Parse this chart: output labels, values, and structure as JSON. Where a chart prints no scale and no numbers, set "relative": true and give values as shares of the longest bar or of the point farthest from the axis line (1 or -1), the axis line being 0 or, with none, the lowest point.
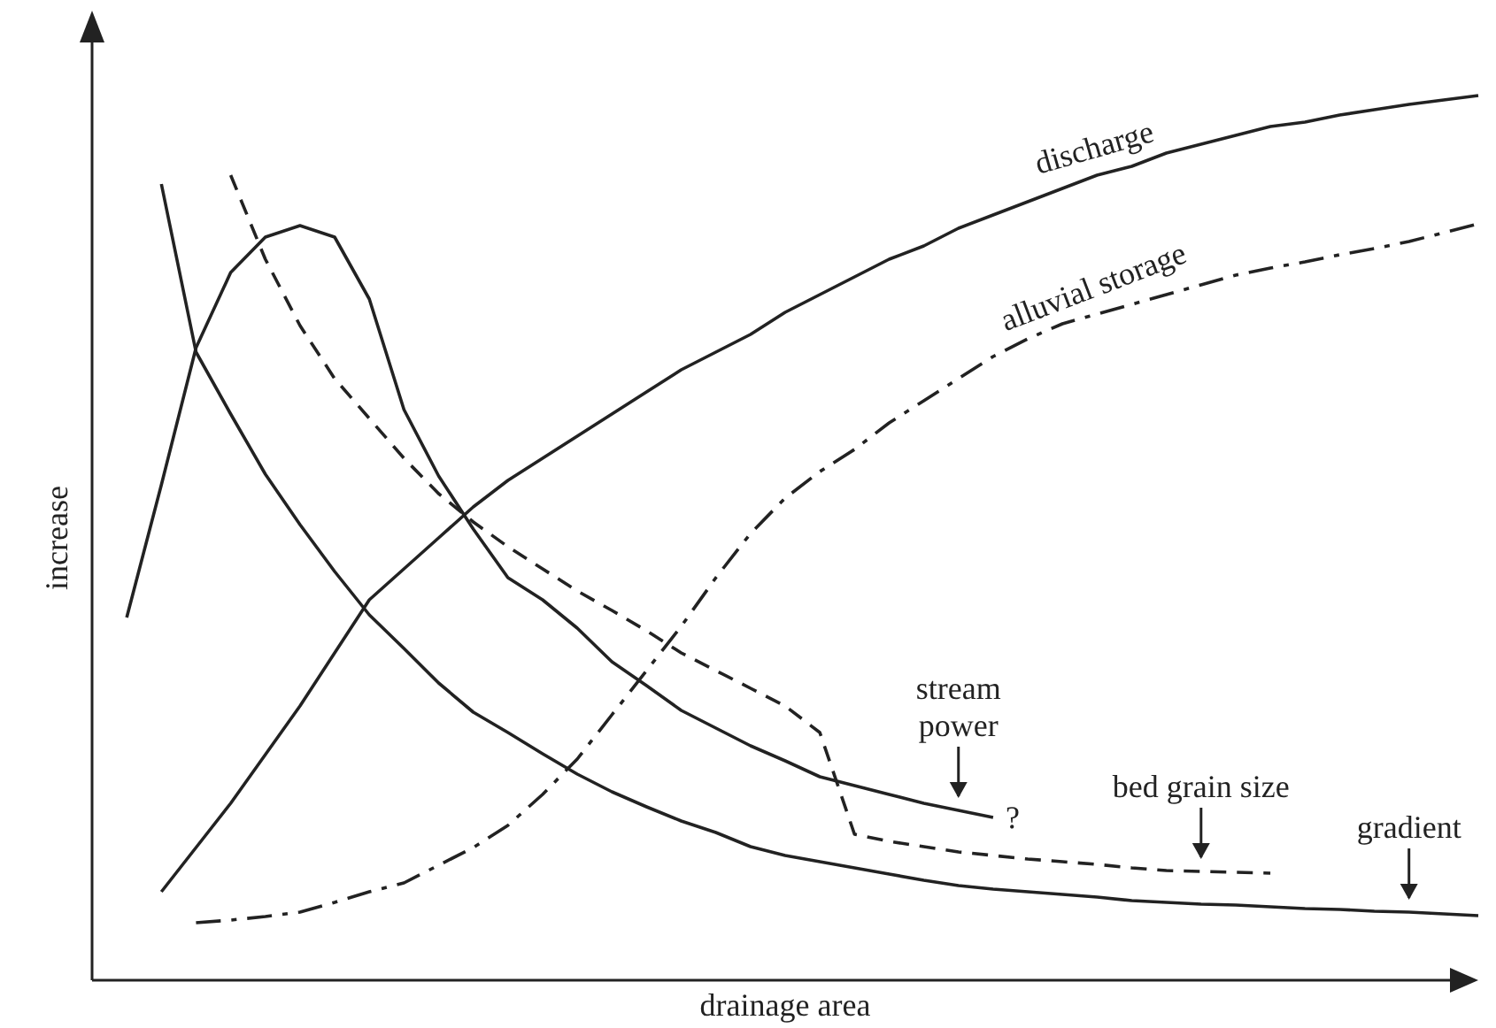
{
  "chart_data": {
    "type": "line",
    "xlabel": "drainage area",
    "ylabel": "increase",
    "relative": true,
    "categories": [
      null,
      null,
      null,
      null,
      null,
      null,
      null,
      null,
      null,
      null,
      null,
      null,
      null,
      null,
      null,
      null,
      null,
      null,
      null,
      null,
      null,
      null,
      null,
      null,
      null,
      null,
      null,
      null,
      null,
      null,
      null,
      null,
      null,
      null,
      null,
      null,
      null,
      null,
      null,
      null,
      null
    ],
    "series": [
      {
        "name": "discharge",
        "color": "#222222",
        "line_style": "solid",
        "values": [
          null,
          null,
          0.1,
          0.15,
          0.2,
          0.255,
          0.31,
          0.37,
          0.43,
          0.465,
          0.5,
          0.535,
          0.565,
          0.59,
          0.615,
          0.64,
          0.665,
          0.69,
          0.71,
          0.73,
          0.755,
          0.775,
          0.795,
          0.815,
          0.83,
          0.85,
          0.865,
          0.88,
          0.895,
          0.91,
          0.92,
          0.935,
          0.945,
          0.955,
          0.965,
          0.97,
          0.978,
          0.984,
          0.99,
          0.995,
          1.0
        ]
      },
      {
        "name": "alluvial storage",
        "color": "#222222",
        "line_style": "dashdot",
        "values": [
          null,
          null,
          null,
          0.065,
          0.068,
          0.072,
          0.077,
          0.088,
          0.1,
          0.11,
          0.13,
          0.15,
          0.175,
          0.21,
          0.25,
          0.3,
          0.35,
          0.4,
          0.455,
          0.505,
          0.545,
          0.575,
          0.6,
          0.63,
          0.655,
          0.68,
          0.705,
          0.725,
          0.742,
          0.753,
          0.764,
          0.775,
          0.786,
          0.797,
          0.805,
          0.812,
          0.82,
          0.827,
          0.835,
          0.845,
          0.855
        ]
      },
      {
        "name": "stream power",
        "color": "#222222",
        "line_style": "solid",
        "values": [
          null,
          0.41,
          0.56,
          0.715,
          0.8,
          0.84,
          0.853,
          0.84,
          0.77,
          0.645,
          0.57,
          0.51,
          0.455,
          0.43,
          0.398,
          0.36,
          0.333,
          0.305,
          0.285,
          0.265,
          0.248,
          0.23,
          0.22,
          0.21,
          0.2,
          0.192,
          0.184,
          null,
          null,
          null,
          null,
          null,
          null,
          null,
          null,
          null,
          null,
          null,
          null,
          null,
          null
        ]
      },
      {
        "name": "bed grain size",
        "color": "#222222",
        "line_style": "dashed",
        "values": [
          null,
          null,
          null,
          null,
          0.91,
          0.815,
          0.74,
          0.68,
          0.635,
          0.59,
          0.55,
          0.518,
          0.49,
          0.465,
          0.44,
          0.418,
          0.395,
          0.37,
          0.35,
          0.33,
          0.31,
          0.28,
          0.165,
          0.157,
          0.151,
          0.145,
          0.141,
          0.137,
          0.134,
          0.131,
          0.127,
          0.124,
          0.123,
          0.122,
          0.121,
          null,
          null,
          null,
          null,
          null,
          null
        ]
      },
      {
        "name": "gradient",
        "color": "#222222",
        "line_style": "solid",
        "values": [
          null,
          null,
          0.9,
          0.71,
          0.64,
          0.572,
          0.515,
          0.462,
          0.413,
          0.375,
          0.336,
          0.303,
          0.28,
          0.256,
          0.233,
          0.213,
          0.196,
          0.18,
          0.167,
          0.151,
          0.141,
          0.134,
          0.127,
          0.12,
          0.113,
          0.107,
          0.103,
          0.1,
          0.097,
          0.094,
          0.09,
          0.088,
          0.086,
          0.085,
          0.083,
          0.081,
          0.08,
          0.078,
          0.077,
          0.075,
          0.073
        ]
      }
    ],
    "annotations": [
      "?"
    ]
  }
}
